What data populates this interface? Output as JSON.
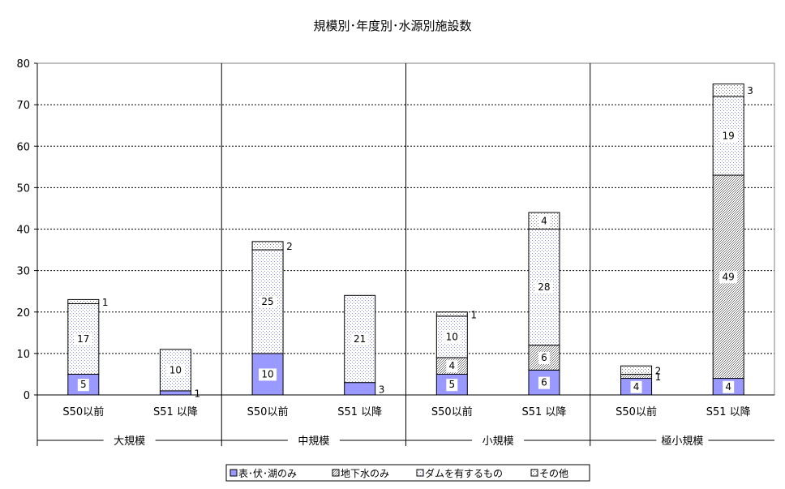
{
  "chart_data": {
    "type": "bar",
    "stacked": true,
    "title": "規模別･年度別･水源別施設数",
    "xlabel": "",
    "ylabel": "",
    "ylim": [
      0,
      80
    ],
    "yticks": [
      0,
      10,
      20,
      30,
      40,
      50,
      60,
      70,
      80
    ],
    "grid": true,
    "legend_position": "bottom",
    "groups": [
      "大規模",
      "中規模",
      "小規模",
      "極小規模"
    ],
    "categories": [
      "S50以前",
      "S51 以降",
      "S50以前",
      "S51 以降",
      "S50以前",
      "S51 以降",
      "S50以前",
      "S51 以降"
    ],
    "series": [
      {
        "name": "表･伏･湖のみ",
        "values": [
          5,
          1,
          10,
          3,
          5,
          6,
          4,
          4
        ]
      },
      {
        "name": "地下水のみ",
        "values": [
          0,
          0,
          0,
          0,
          4,
          6,
          1,
          49
        ]
      },
      {
        "name": "ダムを有するもの",
        "values": [
          17,
          10,
          25,
          21,
          10,
          28,
          0,
          19
        ]
      },
      {
        "name": "その他",
        "values": [
          1,
          0,
          2,
          0,
          1,
          4,
          2,
          3
        ]
      }
    ]
  },
  "colors": {
    "surface": "#9999ff",
    "ground_pattern": "#808080",
    "dam_pattern": "#9a9ac8",
    "other_pattern": "#909090",
    "grid": "#000000"
  }
}
